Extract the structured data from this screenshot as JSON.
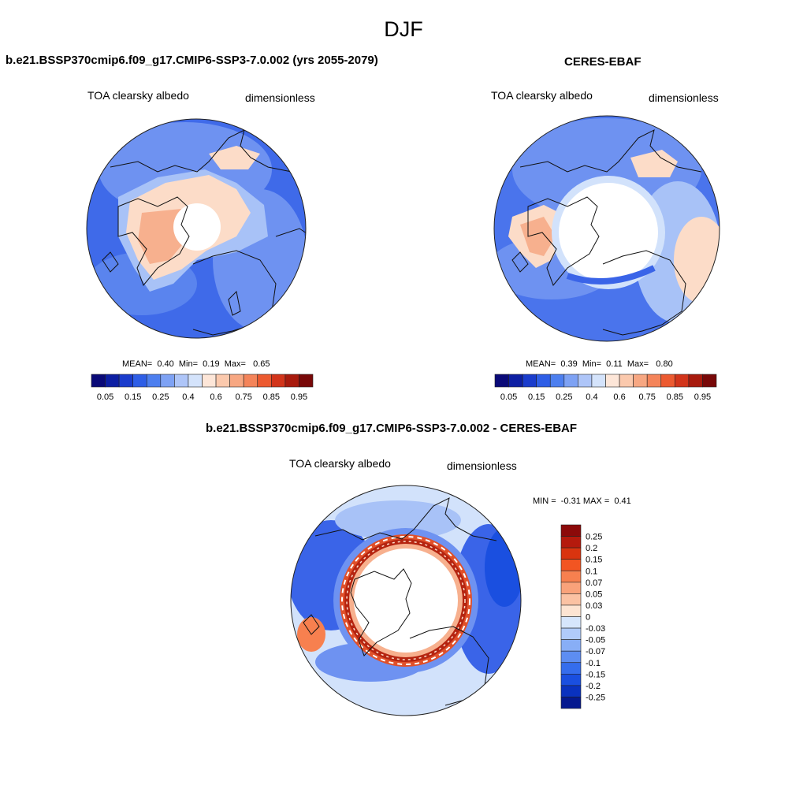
{
  "figure": {
    "title": "DJF"
  },
  "panels": [
    {
      "title": "b.e21.BSSP370cmip6.f09_g17.CMIP6-SSP3-7.0.002 (yrs 2055-2079)",
      "variable": "TOA clearsky albedo",
      "units": "dimensionless",
      "stats": {
        "mean_label": "MEAN=",
        "mean": "0.40",
        "min_label": "Min=",
        "min": "0.19",
        "max_label": "Max=",
        "max": "0.65"
      }
    },
    {
      "title": "CERES-EBAF",
      "variable": "TOA clearsky albedo",
      "units": "dimensionless",
      "stats": {
        "mean_label": "MEAN=",
        "mean": "0.39",
        "min_label": "Min=",
        "min": "0.11",
        "max_label": "Max=",
        "max": "0.80"
      }
    },
    {
      "title": "b.e21.BSSP370cmip6.f09_g17.CMIP6-SSP3-7.0.002 - CERES-EBAF",
      "variable": "TOA clearsky albedo",
      "units": "dimensionless",
      "stats": {
        "min_label": "MIN =",
        "min": "-0.31",
        "max_label": "MAX =",
        "max": "0.41"
      }
    }
  ],
  "colorbars": {
    "absolute": {
      "colors": [
        "#0a0a78",
        "#0d1fa3",
        "#1a3ccc",
        "#2e5ee6",
        "#4d7fef",
        "#7ea2f4",
        "#aec5f8",
        "#d4e3fb",
        "#fde6d8",
        "#fbc9ad",
        "#f7a782",
        "#f4845a",
        "#ec5a30",
        "#d2341a",
        "#a81a0d",
        "#780808"
      ],
      "ticks": [
        "0.05",
        "0.15",
        "0.25",
        "0.4",
        "0.6",
        "0.75",
        "0.85",
        "0.95"
      ]
    },
    "difference": {
      "colors": [
        "#8c0a0a",
        "#b51a0d",
        "#d9340f",
        "#f25522",
        "#f7804f",
        "#f9a27a",
        "#fbc2a3",
        "#fde4d2",
        "#d6e6fc",
        "#b0cbfa",
        "#88aef6",
        "#5d8df2",
        "#356ded",
        "#1a4fe0",
        "#0a32bf",
        "#05198f"
      ],
      "ticks": [
        "0.25",
        "0.2",
        "0.15",
        "0.1",
        "0.07",
        "0.05",
        "0.03",
        "0",
        "-0.03",
        "-0.05",
        "-0.07",
        "-0.1",
        "-0.15",
        "-0.2",
        "-0.25"
      ]
    }
  },
  "map_colors": {
    "blue_dark": "#3a64e8",
    "blue_mid": "#6e92f1",
    "blue_light": "#a8c2f7",
    "blue_pale": "#d2e2fb",
    "peach": "#fcdcc8",
    "salmon": "#f7b08e",
    "red": "#e0502a",
    "red_dark": "#b52410"
  }
}
